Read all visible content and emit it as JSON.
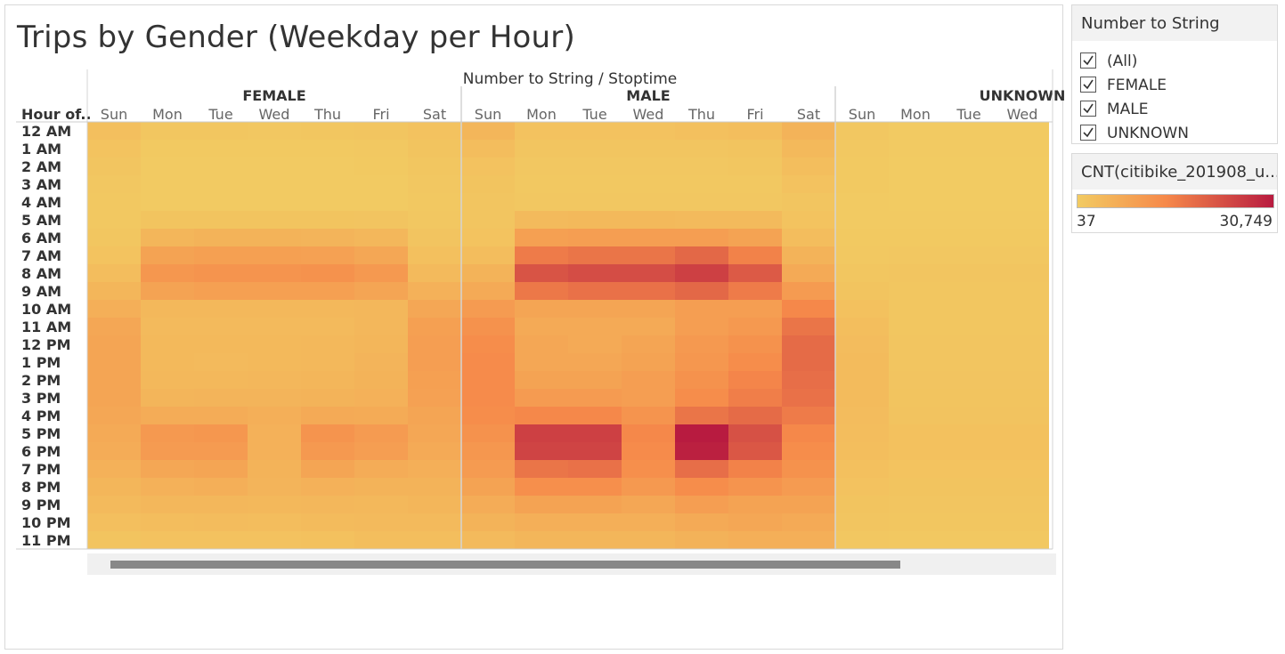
{
  "title": "Trips by Gender (Weekday per Hour)",
  "filter": {
    "title": "Number to String",
    "items": [
      {
        "label": "(All)",
        "checked": true
      },
      {
        "label": "FEMALE",
        "checked": true
      },
      {
        "label": "MALE",
        "checked": true
      },
      {
        "label": "UNKNOWN",
        "checked": true
      }
    ]
  },
  "legend": {
    "title": "CNT(citibike_201908_u...",
    "min_label": "37",
    "max_label": "30,749",
    "color_low": "#f2cb62",
    "color_mid": "#f6894a",
    "color_high": "#b81b40"
  },
  "chart_data": {
    "type": "heatmap",
    "title": "Trips by Gender (Weekday per Hour)",
    "column_header": "Number to String / Stoptime",
    "row_header": "Hour of..",
    "groups": [
      "FEMALE",
      "MALE",
      "UNKNOWN"
    ],
    "days": [
      "Sun",
      "Mon",
      "Tue",
      "Wed",
      "Thu",
      "Fri",
      "Sat"
    ],
    "visible_unknown_days": [
      "Sun",
      "Mon",
      "Tue",
      "Wed"
    ],
    "hours": [
      "12 AM",
      "1 AM",
      "2 AM",
      "3 AM",
      "4 AM",
      "5 AM",
      "6 AM",
      "7 AM",
      "8 AM",
      "9 AM",
      "10 AM",
      "11 AM",
      "12 PM",
      "1 PM",
      "2 PM",
      "3 PM",
      "4 PM",
      "5 PM",
      "6 PM",
      "7 PM",
      "8 PM",
      "9 PM",
      "10 PM",
      "11 PM"
    ],
    "color_range": [
      37,
      30749
    ],
    "series": [
      {
        "name": "FEMALE",
        "values": [
          [
            2500,
            1000,
            1000,
            900,
            1000,
            1200,
            2000
          ],
          [
            1800,
            500,
            500,
            500,
            500,
            600,
            1500
          ],
          [
            1300,
            300,
            300,
            300,
            300,
            400,
            1100
          ],
          [
            900,
            200,
            200,
            200,
            200,
            250,
            800
          ],
          [
            700,
            300,
            300,
            300,
            300,
            300,
            600
          ],
          [
            600,
            1500,
            1600,
            1600,
            1500,
            1400,
            800
          ],
          [
            1000,
            4500,
            5000,
            5000,
            4800,
            4200,
            1400
          ],
          [
            1800,
            8500,
            9000,
            9000,
            8800,
            7500,
            2300
          ],
          [
            3000,
            11000,
            11500,
            11500,
            12000,
            10500,
            3500
          ],
          [
            4500,
            8500,
            9000,
            9000,
            9000,
            8000,
            5500
          ],
          [
            6000,
            4000,
            4000,
            4000,
            4000,
            4200,
            7500
          ],
          [
            7500,
            3500,
            3500,
            3500,
            3500,
            4200,
            9000
          ],
          [
            8000,
            3800,
            3800,
            3800,
            4000,
            4500,
            9500
          ],
          [
            8000,
            3800,
            3600,
            3800,
            4000,
            4800,
            9500
          ],
          [
            8000,
            4000,
            4000,
            4200,
            4500,
            5000,
            9000
          ],
          [
            8000,
            4600,
            4800,
            4800,
            5000,
            5500,
            8800
          ],
          [
            7500,
            6500,
            6500,
            6000,
            7000,
            6800,
            8000
          ],
          [
            7000,
            10500,
            11000,
            5500,
            11500,
            10000,
            7500
          ],
          [
            6500,
            10000,
            10000,
            5500,
            10500,
            9500,
            7000
          ],
          [
            5500,
            7500,
            8000,
            5000,
            8000,
            6500,
            6000
          ],
          [
            4500,
            5500,
            5800,
            4800,
            5500,
            5000,
            5000
          ],
          [
            3500,
            4200,
            4300,
            4000,
            4300,
            4000,
            4500
          ],
          [
            2500,
            3000,
            3200,
            3000,
            3300,
            3500,
            3500
          ],
          [
            1500,
            2000,
            2000,
            2000,
            2200,
            2800,
            2800
          ]
        ]
      },
      {
        "name": "MALE",
        "values": [
          [
            4500,
            2000,
            2000,
            2000,
            2300,
            2800,
            5000
          ],
          [
            3000,
            1200,
            1200,
            1200,
            1300,
            1600,
            3800
          ],
          [
            2000,
            800,
            800,
            800,
            900,
            1000,
            2800
          ],
          [
            1500,
            600,
            600,
            600,
            600,
            700,
            2000
          ],
          [
            1200,
            900,
            900,
            900,
            900,
            900,
            1300
          ],
          [
            1300,
            3500,
            3800,
            3800,
            3700,
            3500,
            1800
          ],
          [
            1800,
            9000,
            9500,
            9500,
            9500,
            8500,
            3000
          ],
          [
            3000,
            16000,
            17000,
            17000,
            19000,
            15000,
            5000
          ],
          [
            5000,
            22000,
            23000,
            23000,
            25000,
            21000,
            7000
          ],
          [
            7000,
            16500,
            17500,
            17500,
            19000,
            16000,
            10000
          ],
          [
            10000,
            8000,
            8000,
            8000,
            9500,
            9500,
            14000
          ],
          [
            12000,
            7000,
            7000,
            7000,
            9500,
            10500,
            17000
          ],
          [
            13000,
            7500,
            7000,
            8000,
            10500,
            12000,
            18500
          ],
          [
            13500,
            7500,
            7500,
            8500,
            11000,
            13000,
            18500
          ],
          [
            13500,
            8500,
            8500,
            9500,
            12000,
            14500,
            18000
          ],
          [
            13500,
            10000,
            10000,
            9500,
            13000,
            15500,
            17500
          ],
          [
            13000,
            14000,
            14000,
            11500,
            17000,
            18500,
            16000
          ],
          [
            12000,
            25000,
            25000,
            14000,
            30749,
            22500,
            14000
          ],
          [
            11000,
            24500,
            24500,
            13500,
            30000,
            21500,
            13000
          ],
          [
            10000,
            17000,
            17500,
            12500,
            18000,
            15000,
            12000
          ],
          [
            8500,
            12500,
            12500,
            10500,
            13000,
            11500,
            10000
          ],
          [
            6500,
            8500,
            8500,
            7500,
            9500,
            8500,
            8500
          ],
          [
            5000,
            6000,
            6000,
            6000,
            7000,
            7500,
            7000
          ],
          [
            3500,
            4500,
            4500,
            4500,
            5200,
            6000,
            6000
          ]
        ]
      },
      {
        "name": "UNKNOWN",
        "values": [
          [
            900,
            300,
            300,
            300
          ],
          [
            700,
            200,
            200,
            200
          ],
          [
            500,
            100,
            100,
            100
          ],
          [
            400,
            80,
            80,
            80
          ],
          [
            300,
            60,
            60,
            60
          ],
          [
            250,
            150,
            150,
            150
          ],
          [
            400,
            500,
            500,
            500
          ],
          [
            700,
            900,
            900,
            900
          ],
          [
            1000,
            1200,
            1200,
            1200
          ],
          [
            1500,
            1100,
            1100,
            1100
          ],
          [
            2200,
            1000,
            1000,
            1000
          ],
          [
            2800,
            1100,
            1100,
            1100
          ],
          [
            3200,
            1200,
            1200,
            1200
          ],
          [
            3400,
            1300,
            1300,
            1300
          ],
          [
            3400,
            1400,
            1400,
            1400
          ],
          [
            3300,
            1500,
            1500,
            1500
          ],
          [
            3200,
            1700,
            1700,
            1700
          ],
          [
            3000,
            2100,
            2100,
            2100
          ],
          [
            2800,
            2100,
            2100,
            2100
          ],
          [
            2400,
            1800,
            1800,
            1800
          ],
          [
            2000,
            1500,
            1500,
            1500
          ],
          [
            1600,
            1200,
            1200,
            1200
          ],
          [
            1300,
            1000,
            1000,
            1000
          ],
          [
            900,
            700,
            700,
            700
          ]
        ]
      }
    ]
  }
}
